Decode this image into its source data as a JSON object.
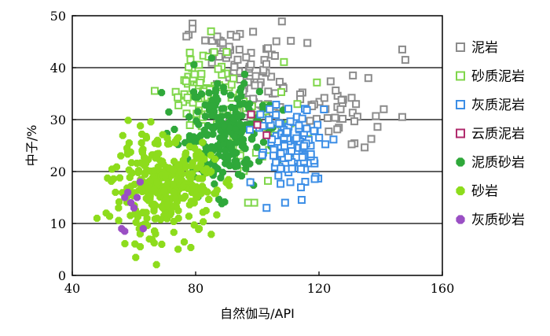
{
  "chart_data": {
    "type": "scatter",
    "title": "",
    "xlabel": "自然伽马/API",
    "ylabel": "中子/%",
    "xlim": [
      40,
      160
    ],
    "ylim": [
      0,
      50
    ],
    "xticks": [
      "40",
      "80",
      "120",
      "160"
    ],
    "yticks": [
      "0",
      "10",
      "20",
      "30",
      "40",
      "50"
    ],
    "grid": "horizontal",
    "legend_position": "right",
    "series": [
      {
        "name": "泥岩",
        "color": "#8c8c8c",
        "marker": "square",
        "clusters": [
          {
            "cx": 100,
            "cy": 37,
            "sx": 8,
            "sy": 4,
            "n": 60
          },
          {
            "cx": 125,
            "cy": 31,
            "sx": 6,
            "sy": 3,
            "n": 35
          },
          {
            "cx": 88,
            "cy": 44,
            "sx": 4,
            "sy": 2.5,
            "n": 18
          }
        ],
        "points": [
          [
            79,
            48.5
          ],
          [
            79,
            47.5
          ],
          [
            77,
            46
          ],
          [
            87,
            46
          ],
          [
            147,
            43.5
          ],
          [
            148,
            41.5
          ],
          [
            141,
            32
          ],
          [
            147,
            30.5
          ],
          [
            136,
            38
          ],
          [
            131,
            38.5
          ],
          [
            127,
            32
          ],
          [
            132,
            33
          ]
        ]
      },
      {
        "name": "砂质泥岩",
        "color": "#7fd64a",
        "marker": "square",
        "clusters": [
          {
            "cx": 83,
            "cy": 36,
            "sx": 5,
            "sy": 3.5,
            "n": 70
          },
          {
            "cx": 103,
            "cy": 30,
            "sx": 8,
            "sy": 6,
            "n": 35
          }
        ],
        "points": [
          [
            85,
            47
          ],
          [
            86,
            43
          ],
          [
            99,
            14
          ],
          [
            97,
            14
          ],
          [
            113,
            33
          ]
        ]
      },
      {
        "name": "灰质泥岩",
        "color": "#3c8ee6",
        "marker": "square",
        "clusters": [
          {
            "cx": 112,
            "cy": 25,
            "sx": 6,
            "sy": 4,
            "n": 110
          }
        ],
        "points": [
          [
            109,
            14
          ],
          [
            103,
            13
          ],
          [
            101,
            31
          ],
          [
            104,
            32
          ]
        ]
      },
      {
        "name": "云质泥岩",
        "color": "#b02a6c",
        "marker": "square",
        "clusters": [],
        "points": [
          [
            100,
            29
          ],
          [
            103,
            27
          ],
          [
            98,
            31
          ]
        ]
      },
      {
        "name": "泥质砂岩",
        "color": "#2fa83a",
        "marker": "circle",
        "clusters": [
          {
            "cx": 88,
            "cy": 27,
            "sx": 7,
            "sy": 5,
            "n": 230
          }
        ],
        "points": []
      },
      {
        "name": "砂岩",
        "color": "#8ddc1c",
        "marker": "circle",
        "clusters": [
          {
            "cx": 70,
            "cy": 17,
            "sx": 8,
            "sy": 4.5,
            "n": 320
          }
        ],
        "points": [
          [
            48,
            11
          ],
          [
            51,
            12
          ],
          [
            54,
            16
          ],
          [
            55,
            13
          ],
          [
            62,
            8
          ],
          [
            65,
            7
          ],
          [
            67,
            8
          ],
          [
            85,
            20
          ]
        ]
      },
      {
        "name": "灰质砂岩",
        "color": "#9a4fc4",
        "marker": "circle",
        "clusters": [],
        "points": [
          [
            56,
            9
          ],
          [
            57,
            8.5
          ],
          [
            57,
            15
          ],
          [
            58,
            16
          ],
          [
            59,
            14
          ],
          [
            60,
            13
          ],
          [
            61,
            15
          ],
          [
            62,
            18
          ],
          [
            63,
            9
          ]
        ]
      }
    ]
  }
}
